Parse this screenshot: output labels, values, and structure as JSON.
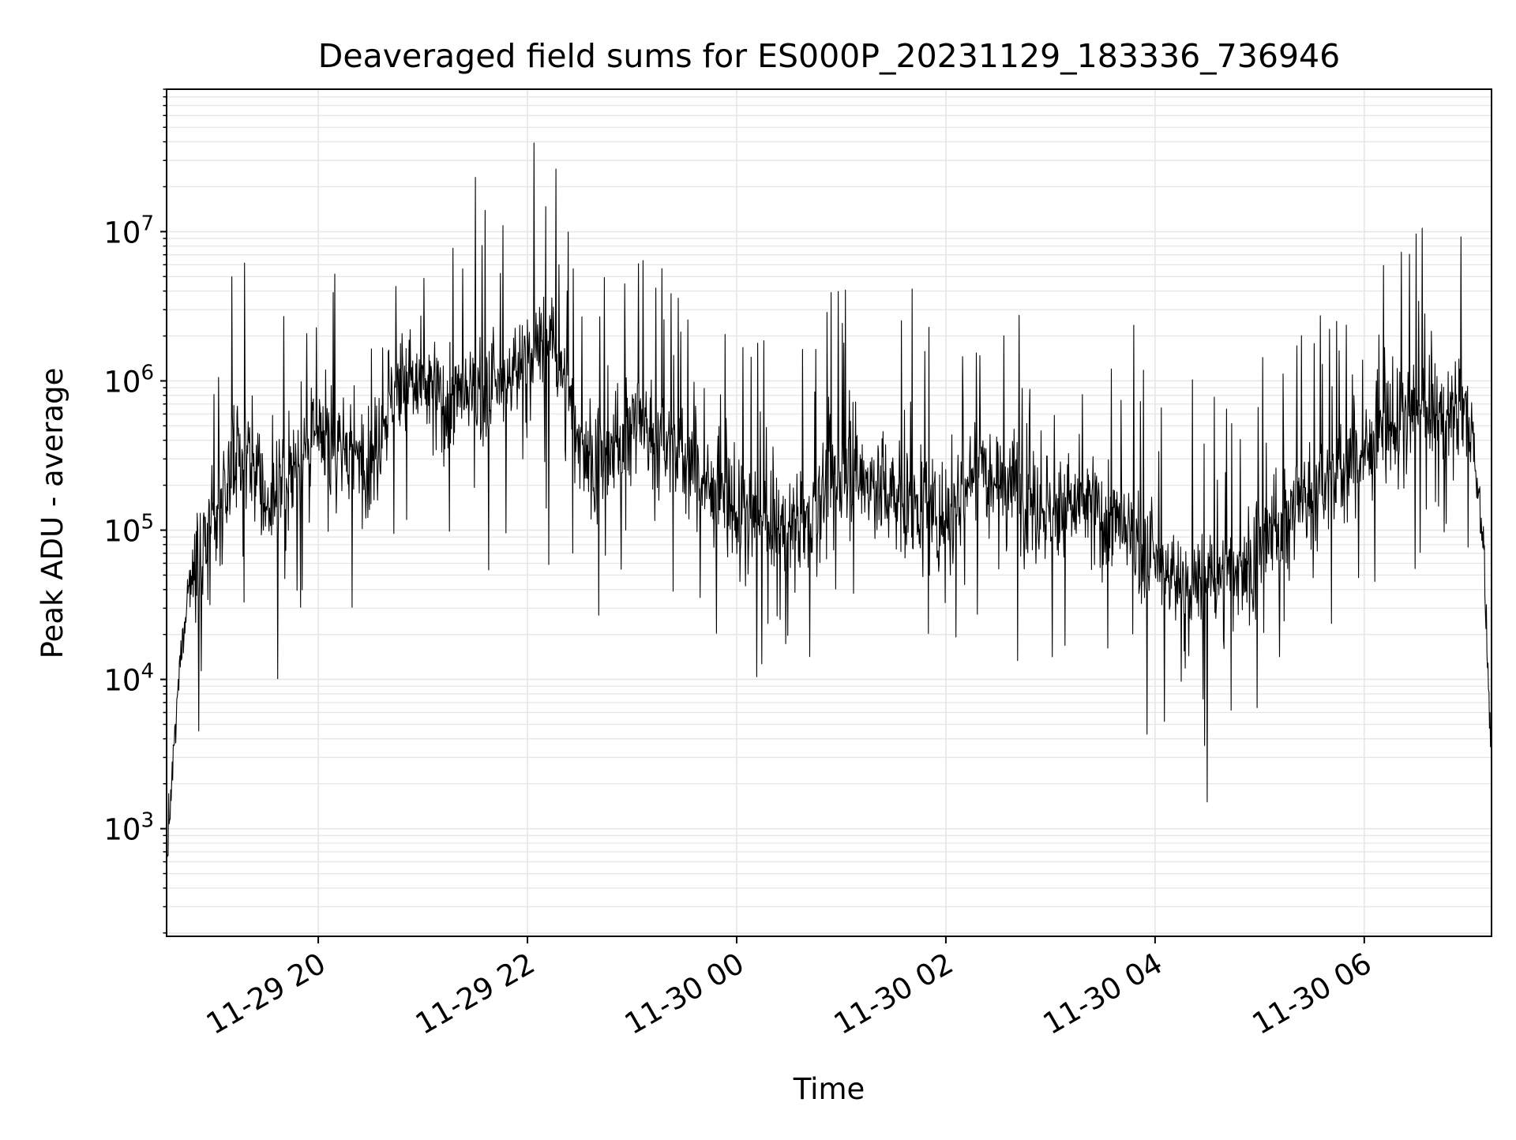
{
  "chart_data": {
    "type": "line",
    "title": "Deaveraged field sums for ES000P_20231129_183336_736946",
    "xlabel": "Time",
    "ylabel": "Peak ADU - average",
    "yscale": "log",
    "ylim": [
      190,
      90000000
    ],
    "xlim": [
      "2023-11-29 18:33",
      "2023-11-30 07:13"
    ],
    "grid": true,
    "grid_color": "#e6e6e6",
    "line_color": "#000000",
    "x_ticks": [
      {
        "value": "2023-11-29 20:00",
        "label": "11-29 20"
      },
      {
        "value": "2023-11-29 22:00",
        "label": "11-29 22"
      },
      {
        "value": "2023-11-30 00:00",
        "label": "11-30 00"
      },
      {
        "value": "2023-11-30 02:00",
        "label": "11-30 02"
      },
      {
        "value": "2023-11-30 04:00",
        "label": "11-30 04"
      },
      {
        "value": "2023-11-30 06:00",
        "label": "11-30 06"
      }
    ],
    "y_ticks": [
      {
        "value": 1000,
        "base": "10",
        "exp": "3"
      },
      {
        "value": 10000,
        "base": "10",
        "exp": "4"
      },
      {
        "value": 100000,
        "base": "10",
        "exp": "5"
      },
      {
        "value": 1000000,
        "base": "10",
        "exp": "6"
      },
      {
        "value": 10000000,
        "base": "10",
        "exp": "7"
      }
    ],
    "series": [
      {
        "description": "approximate envelope of the dense noisy trace",
        "x": [
          "2023-11-29 18:33",
          "2023-11-29 18:36",
          "2023-11-29 18:40",
          "2023-11-29 18:45",
          "2023-11-29 18:50",
          "2023-11-29 19:00",
          "2023-11-29 19:10",
          "2023-11-29 19:20",
          "2023-11-29 19:30",
          "2023-11-29 19:40",
          "2023-11-29 19:50",
          "2023-11-29 20:00",
          "2023-11-29 20:15",
          "2023-11-29 20:30",
          "2023-11-29 20:45",
          "2023-11-29 21:00",
          "2023-11-29 21:15",
          "2023-11-29 21:30",
          "2023-11-29 21:45",
          "2023-11-29 22:00",
          "2023-11-29 22:15",
          "2023-11-29 22:30",
          "2023-11-29 22:45",
          "2023-11-29 23:00",
          "2023-11-29 23:15",
          "2023-11-29 23:30",
          "2023-11-29 23:45",
          "2023-11-30 00:00",
          "2023-11-30 00:20",
          "2023-11-30 00:40",
          "2023-11-30 01:00",
          "2023-11-30 01:20",
          "2023-11-30 01:40",
          "2023-11-30 02:00",
          "2023-11-30 02:20",
          "2023-11-30 02:40",
          "2023-11-30 03:00",
          "2023-11-30 03:20",
          "2023-11-30 03:40",
          "2023-11-30 04:00",
          "2023-11-30 04:20",
          "2023-11-30 04:40",
          "2023-11-30 05:00",
          "2023-11-30 05:20",
          "2023-11-30 05:40",
          "2023-11-30 06:00",
          "2023-11-30 06:15",
          "2023-11-30 06:30",
          "2023-11-30 06:45",
          "2023-11-30 07:00",
          "2023-11-30 07:08",
          "2023-11-30 07:13"
        ],
        "y": [
          600,
          2000,
          10000,
          40000,
          60000,
          100000,
          250000,
          400000,
          150000,
          200000,
          300000,
          400000,
          350000,
          300000,
          1000000,
          900000,
          700000,
          800000,
          900000,
          1500000,
          1800000,
          400000,
          250000,
          600000,
          400000,
          300000,
          200000,
          130000,
          100000,
          120000,
          250000,
          200000,
          150000,
          120000,
          300000,
          200000,
          130000,
          150000,
          100000,
          60000,
          40000,
          50000,
          70000,
          150000,
          200000,
          350000,
          500000,
          600000,
          600000,
          700000,
          100000,
          2500
        ]
      }
    ]
  }
}
